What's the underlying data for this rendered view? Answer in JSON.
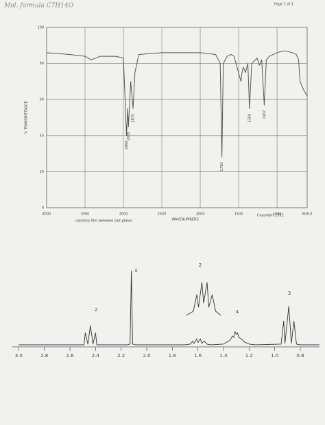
{
  "page": {
    "handwriting": "Mol. formula C7H14O",
    "page_number": "Page 1 of 1"
  },
  "chart_data": [
    {
      "type": "line",
      "x_label": "WAVENUMBERS",
      "y_label": "% TRANSMITTANCE",
      "note": "capillary film between salt plates",
      "copyright": "Copyright 1992",
      "x": [
        4000,
        3700,
        3500,
        3420,
        3300,
        3100,
        3000,
        2960,
        2945,
        2935,
        2905,
        2875,
        2850,
        2800,
        2500,
        2200,
        2000,
        1800,
        1740,
        1718,
        1700,
        1650,
        1600,
        1560,
        1470,
        1460,
        1440,
        1410,
        1380,
        1359,
        1330,
        1260,
        1230,
        1200,
        1167,
        1140,
        1100,
        1000,
        900,
        800,
        750,
        720,
        700,
        650,
        608
      ],
      "values": [
        86,
        85,
        84,
        82,
        84,
        84,
        83,
        40,
        55,
        45,
        70,
        55,
        75,
        85,
        86,
        86,
        86,
        85,
        80,
        28,
        80,
        84,
        85,
        84,
        70,
        74,
        78,
        75,
        80,
        55,
        80,
        83,
        79,
        82,
        57,
        82,
        84,
        86,
        87,
        86,
        85,
        82,
        70,
        65,
        62
      ],
      "color": "#555555",
      "xlim": [
        4000,
        608
      ],
      "ylim": [
        0,
        100
      ],
      "xticks": [
        4000,
        3500,
        3000,
        2500,
        2000,
        1500,
        1000,
        {
          "value": 608,
          "label": "608.0"
        }
      ],
      "yticks": [
        0,
        20,
        40,
        60,
        80,
        100
      ],
      "grid": true,
      "peak_labels": [
        2960,
        2935,
        2875,
        1718,
        1359,
        1167
      ]
    },
    {
      "type": "line",
      "x": [
        3.0,
        2.5,
        2.49,
        2.48,
        2.46,
        2.44,
        2.42,
        2.4,
        2.39,
        2.15,
        2.13,
        2.12,
        2.11,
        2.09,
        1.7,
        1.66,
        1.64,
        1.63,
        1.61,
        1.6,
        1.58,
        1.57,
        1.55,
        1.53,
        1.5,
        1.4,
        1.35,
        1.33,
        1.32,
        1.31,
        1.3,
        1.29,
        1.28,
        1.26,
        1.24,
        1.2,
        1.15,
        0.95,
        0.93,
        0.92,
        0.89,
        0.87,
        0.85,
        0.83,
        0.8,
        0.65
      ],
      "values": [
        0,
        0,
        0,
        16,
        1,
        26,
        1,
        16,
        0,
        0,
        1,
        100,
        1,
        0,
        0,
        1,
        5,
        2,
        8,
        3,
        8,
        2,
        5,
        1,
        0,
        1,
        6,
        12,
        10,
        18,
        14,
        16,
        10,
        8,
        4,
        1,
        0,
        1,
        32,
        2,
        52,
        2,
        32,
        1,
        0,
        0
      ],
      "color": "#333333",
      "xlim": [
        3.05,
        0.65
      ],
      "ylim": [
        0,
        100
      ],
      "xticks": [
        {
          "value": 3,
          "label": "3.0"
        },
        2.8,
        2.6,
        2.4,
        2.2,
        {
          "value": 2,
          "label": "2.0"
        },
        1.8,
        1.6,
        1.4,
        1.2,
        {
          "value": 1,
          "label": "1.0"
        },
        0.8
      ],
      "integrations": [
        "2",
        "3",
        "2",
        "4",
        "3"
      ]
    }
  ]
}
